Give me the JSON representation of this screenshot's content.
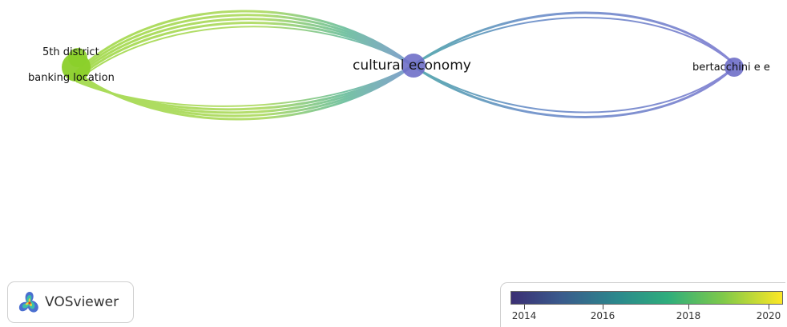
{
  "nodes": [
    {
      "id": "5th-district",
      "label": "5th district"
    },
    {
      "id": "banking-location",
      "label": "banking location"
    },
    {
      "id": "cultural-economy",
      "label": "cultural economy"
    },
    {
      "id": "bertacchini",
      "label": "bertacchini e e"
    }
  ],
  "links": [
    {
      "from": "banking-location",
      "to": "cultural-economy"
    },
    {
      "from": "5th-district",
      "to": "cultural-economy"
    },
    {
      "from": "cultural-economy",
      "to": "bertacchini"
    }
  ],
  "logo": {
    "text": "VOSviewer"
  },
  "legend": {
    "ticks": [
      "2014",
      "2016",
      "2018",
      "2020"
    ],
    "colors": [
      "#3b2f74",
      "#2b8a8c",
      "#2fae7c",
      "#7ec94a",
      "#fde725"
    ]
  },
  "colors": {
    "node_green": "#8bcf2a",
    "node_purple": "#6f6fc8",
    "link_green": "#a4d84a",
    "link_teal": "#4aa3a8",
    "link_purple": "#7b7bd0"
  }
}
